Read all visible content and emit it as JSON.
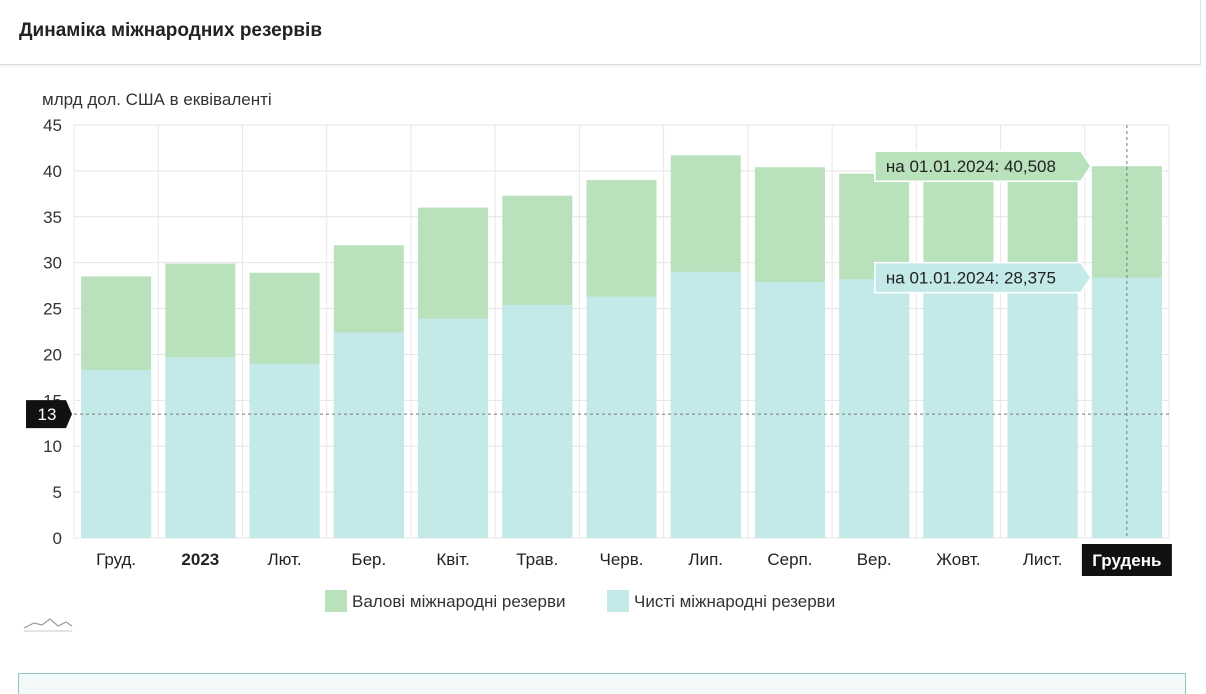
{
  "header": {
    "title": "Динаміка міжнародних резервів"
  },
  "chart_data": {
    "type": "bar",
    "stacked": "overlay",
    "ylabel": "млрд дол. США в еквіваленті",
    "ylim": [
      0,
      45
    ],
    "yticks": [
      0,
      5,
      10,
      15,
      20,
      25,
      30,
      35,
      40,
      45
    ],
    "categories": [
      "Груд.",
      "2023",
      "Лют.",
      "Бер.",
      "Квіт.",
      "Трав.",
      "Черв.",
      "Лип.",
      "Серп.",
      "Вер.",
      "Жовт.",
      "Лист.",
      "Грудень"
    ],
    "bold_categories": [
      "2023"
    ],
    "highlighted_category": "Грудень",
    "series": [
      {
        "name": "Валові міжнародні резерви",
        "color": "#b9e2bc",
        "values": [
          28.5,
          29.9,
          28.9,
          31.9,
          36.0,
          37.3,
          39.0,
          41.7,
          40.4,
          39.7,
          39.8,
          39.8,
          40.508
        ]
      },
      {
        "name": "Чисті міжнародні резерви",
        "color": "#c3e9e8",
        "values": [
          18.3,
          19.7,
          19.0,
          22.4,
          23.9,
          25.4,
          26.3,
          29.0,
          27.9,
          28.2,
          27.7,
          27.9,
          28.375
        ]
      }
    ],
    "tooltips": [
      {
        "text": "на 01.01.2024: 40,508",
        "series": "Валові міжнародні резерви",
        "value": 40.508,
        "color": "#b9e2bc"
      },
      {
        "text": "на 01.01.2024: 28,375",
        "series": "Чисті міжнародні резерви",
        "value": 28.375,
        "color": "#c3e9e8"
      }
    ],
    "crosshair": {
      "y_value": 13.5,
      "y_label": "13"
    },
    "grid": true,
    "legend": "bottom-center"
  }
}
